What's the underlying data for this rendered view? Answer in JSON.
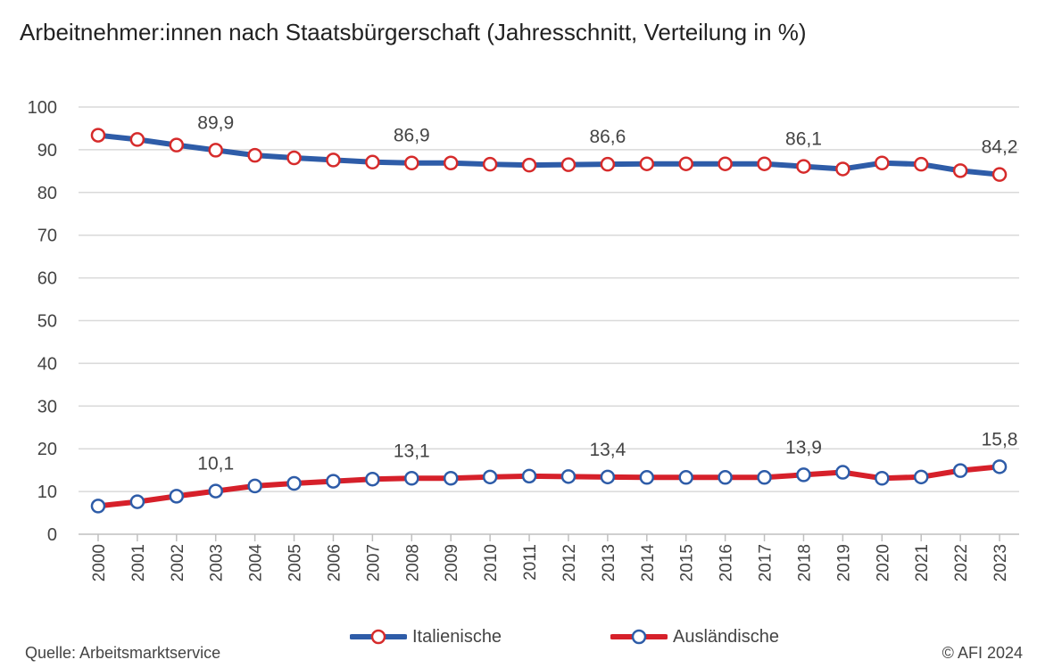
{
  "title": "Arbeitnehmer:innen nach Staatsbürgerschaft (Jahresschnitt, Verteilung in %)",
  "source": "Quelle: Arbeitsmarktservice",
  "copyright": "© AFI 2024",
  "colors": {
    "italian_line": "#2e5ca8",
    "italian_marker": "#d62b2b",
    "foreign_line": "#d6202a",
    "foreign_marker": "#2e5ca8",
    "grid": "#d9d9d9"
  },
  "chart_data": {
    "type": "line",
    "title": "Arbeitnehmer:innen nach Staatsbürgerschaft (Jahresschnitt, Verteilung in %)",
    "xlabel": "",
    "ylabel": "",
    "ylim": [
      0,
      100
    ],
    "yticks": [
      0,
      10,
      20,
      30,
      40,
      50,
      60,
      70,
      80,
      90,
      100
    ],
    "grid": true,
    "legend_position": "bottom",
    "categories": [
      "2000",
      "2001",
      "2002",
      "2003",
      "2004",
      "2005",
      "2006",
      "2007",
      "2008",
      "2009",
      "2010",
      "2011",
      "2012",
      "2013",
      "2014",
      "2015",
      "2016",
      "2017",
      "2018",
      "2019",
      "2020",
      "2021",
      "2022",
      "2023"
    ],
    "series": [
      {
        "name": "Italienische",
        "values": [
          93.4,
          92.4,
          91.1,
          89.9,
          88.7,
          88.1,
          87.6,
          87.1,
          86.9,
          86.9,
          86.6,
          86.4,
          86.5,
          86.6,
          86.7,
          86.7,
          86.7,
          86.7,
          86.1,
          85.5,
          86.9,
          86.6,
          85.1,
          84.2
        ],
        "data_labels": [
          {
            "category": "2003",
            "text": "89,9"
          },
          {
            "category": "2008",
            "text": "86,9"
          },
          {
            "category": "2013",
            "text": "86,6"
          },
          {
            "category": "2018",
            "text": "86,1"
          },
          {
            "category": "2023",
            "text": "84,2"
          }
        ]
      },
      {
        "name": "Ausländische",
        "values": [
          6.6,
          7.6,
          8.9,
          10.1,
          11.3,
          11.9,
          12.4,
          12.9,
          13.1,
          13.1,
          13.4,
          13.6,
          13.5,
          13.4,
          13.3,
          13.3,
          13.3,
          13.3,
          13.9,
          14.5,
          13.1,
          13.4,
          14.9,
          15.8
        ],
        "data_labels": [
          {
            "category": "2003",
            "text": "10,1"
          },
          {
            "category": "2008",
            "text": "13,1"
          },
          {
            "category": "2013",
            "text": "13,4"
          },
          {
            "category": "2018",
            "text": "13,9"
          },
          {
            "category": "2023",
            "text": "15,8"
          }
        ]
      }
    ]
  }
}
